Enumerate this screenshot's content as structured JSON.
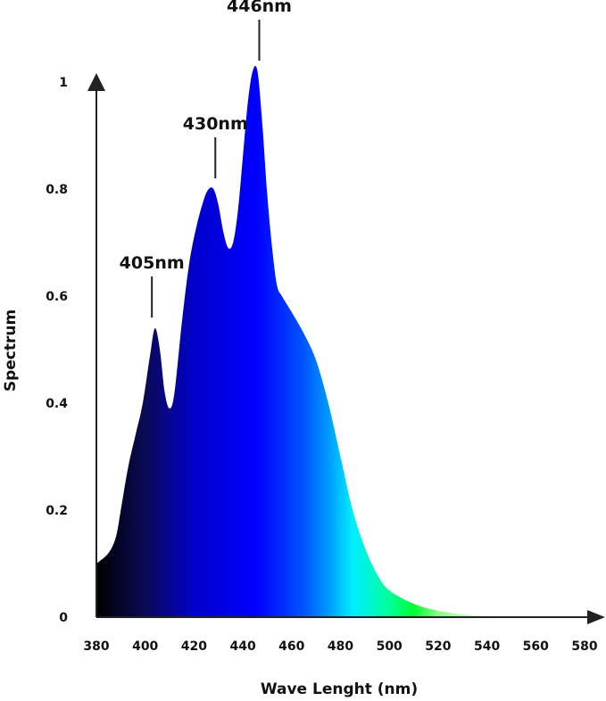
{
  "chart_data": {
    "type": "area",
    "title": "",
    "xlabel": "Wave Lenght (nm)",
    "ylabel": "Spectrum",
    "xlim": [
      380,
      580
    ],
    "ylim": [
      0,
      1
    ],
    "x_ticks": [
      "380",
      "400",
      "420",
      "440",
      "460",
      "480",
      "500",
      "520",
      "540",
      "560",
      "580"
    ],
    "y_ticks": [
      "0",
      "0.2",
      "0.4",
      "0.6",
      "0.8",
      "1"
    ],
    "grid": false,
    "series": [
      {
        "x": [
          380,
          385,
          388,
          390,
          393,
          396,
          399,
          402,
          404,
          406,
          408,
          410,
          412,
          415,
          418,
          421,
          424,
          426,
          428,
          430,
          432,
          434,
          436,
          438,
          440,
          442,
          444,
          446,
          448,
          450,
          452,
          454,
          456,
          460,
          465,
          470,
          475,
          480,
          485,
          490,
          495,
          500,
          510,
          520,
          530,
          540,
          545
        ],
        "y": [
          0.1,
          0.12,
          0.15,
          0.2,
          0.28,
          0.34,
          0.4,
          0.49,
          0.54,
          0.5,
          0.42,
          0.39,
          0.42,
          0.55,
          0.66,
          0.73,
          0.78,
          0.8,
          0.8,
          0.77,
          0.72,
          0.69,
          0.7,
          0.76,
          0.86,
          0.96,
          1.02,
          1.02,
          0.92,
          0.79,
          0.69,
          0.62,
          0.6,
          0.57,
          0.53,
          0.48,
          0.4,
          0.3,
          0.2,
          0.13,
          0.08,
          0.05,
          0.025,
          0.012,
          0.005,
          0.002,
          0.0
        ]
      }
    ],
    "color_stops": [
      {
        "nm": 380,
        "color": "#000000"
      },
      {
        "nm": 400,
        "color": "#0a0a55"
      },
      {
        "nm": 420,
        "color": "#0000cc"
      },
      {
        "nm": 446,
        "color": "#0000ff"
      },
      {
        "nm": 465,
        "color": "#0055ff"
      },
      {
        "nm": 475,
        "color": "#0099ff"
      },
      {
        "nm": 485,
        "color": "#00eeff"
      },
      {
        "nm": 500,
        "color": "#00ff99"
      },
      {
        "nm": 510,
        "color": "#00ff33"
      },
      {
        "nm": 520,
        "color": "#88ff88"
      },
      {
        "nm": 545,
        "color": "#ffffff"
      }
    ],
    "annotations": [
      {
        "label": "405nm",
        "x": 402,
        "y": 0.54
      },
      {
        "label": "430nm",
        "x": 428,
        "y": 0.8
      },
      {
        "label": "446nm",
        "x": 446,
        "y": 1.02
      }
    ]
  }
}
